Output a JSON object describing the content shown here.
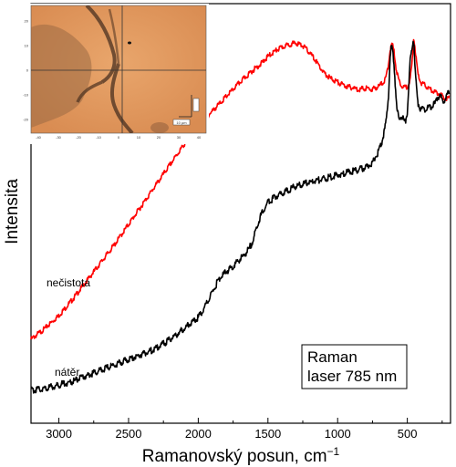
{
  "chart_data": {
    "type": "line",
    "xlabel": "Ramanovský posun, cm",
    "xlabel_superscript": "−1",
    "ylabel": "Intensita",
    "x_reversed": true,
    "xlim": [
      3200,
      190
    ],
    "ylim": [
      0,
      100
    ],
    "x_ticks": [
      3000,
      2500,
      2000,
      1500,
      1000,
      500
    ],
    "y_ticks_shown": false,
    "grid": false,
    "annotation": [
      "Raman",
      "laser 785 nm"
    ],
    "series_labels": [
      "nečistota",
      "nátěr"
    ],
    "series": [
      {
        "name": "nečistota",
        "color": "#ff0000",
        "x": [
          3200,
          3100,
          3000,
          2900,
          2800,
          2700,
          2600,
          2500,
          2400,
          2300,
          2200,
          2100,
          2000,
          1900,
          1800,
          1700,
          1600,
          1550,
          1500,
          1450,
          1400,
          1350,
          1300,
          1250,
          1200,
          1150,
          1100,
          1050,
          1000,
          950,
          900,
          850,
          800,
          750,
          700,
          660,
          640,
          625,
          610,
          595,
          580,
          560,
          540,
          520,
          500,
          480,
          465,
          455,
          445,
          435,
          420,
          400,
          370,
          340,
          300,
          260,
          230,
          200
        ],
        "y": [
          17,
          20,
          23.5,
          28,
          33,
          38,
          43,
          48.5,
          54,
          59.5,
          65,
          70.5,
          75.5,
          79.5,
          83.5,
          87.5,
          91,
          92.5,
          94.5,
          96,
          97,
          97.8,
          98.2,
          97.5,
          95.5,
          93,
          90,
          88.5,
          87.5,
          86.5,
          86,
          85.5,
          85.8,
          85.5,
          86.5,
          88,
          91,
          96,
          98,
          96,
          91,
          88,
          86.5,
          86,
          86.3,
          88,
          93,
          99.5,
          97,
          93,
          89,
          87.2,
          86.5,
          85.5,
          84.8,
          84,
          83,
          83.2
        ]
      },
      {
        "name": "nátěr",
        "color": "#000000",
        "x": [
          3200,
          3100,
          3000,
          2900,
          2800,
          2700,
          2600,
          2500,
          2400,
          2300,
          2200,
          2100,
          2000,
          1950,
          1900,
          1850,
          1800,
          1750,
          1700,
          1650,
          1620,
          1600,
          1580,
          1550,
          1500,
          1450,
          1400,
          1350,
          1300,
          1250,
          1200,
          1150,
          1100,
          1050,
          1000,
          950,
          900,
          850,
          800,
          750,
          720,
          690,
          670,
          650,
          635,
          625,
          615,
          605,
          595,
          585,
          575,
          560,
          545,
          530,
          515,
          500,
          490,
          480,
          470,
          460,
          452,
          445,
          435,
          425,
          410,
          395,
          380,
          360,
          340,
          320,
          300,
          280,
          260,
          240,
          220,
          200
        ],
        "y": [
          3,
          3.5,
          4.5,
          5.5,
          7,
          8.5,
          10,
          11.5,
          13,
          14.5,
          17,
          20,
          23,
          26,
          30,
          33.5,
          35.5,
          37,
          39,
          41,
          43,
          45,
          48,
          51,
          54.5,
          56,
          57,
          58,
          59,
          59.5,
          60,
          60.5,
          61,
          61.5,
          62,
          62.5,
          63,
          63.5,
          64,
          65.5,
          67.5,
          70,
          73,
          77,
          84,
          93,
          97.5,
          96,
          92,
          86,
          80,
          77.5,
          78,
          77.5,
          76.5,
          79,
          86,
          93,
          96,
          99,
          98,
          92,
          86,
          82,
          80.5,
          80,
          80,
          80.5,
          80.5,
          81,
          81.5,
          83.5,
          83.5,
          82,
          84,
          84.5
        ]
      }
    ]
  },
  "inset": {
    "x_ticks": [
      "-40",
      "-30",
      "-20",
      "-10",
      "0",
      "10",
      "20",
      "30",
      "40"
    ],
    "y_ticks": [
      "-20",
      "-10",
      "0",
      "10",
      "20"
    ],
    "scale_bar": "10 µm"
  }
}
